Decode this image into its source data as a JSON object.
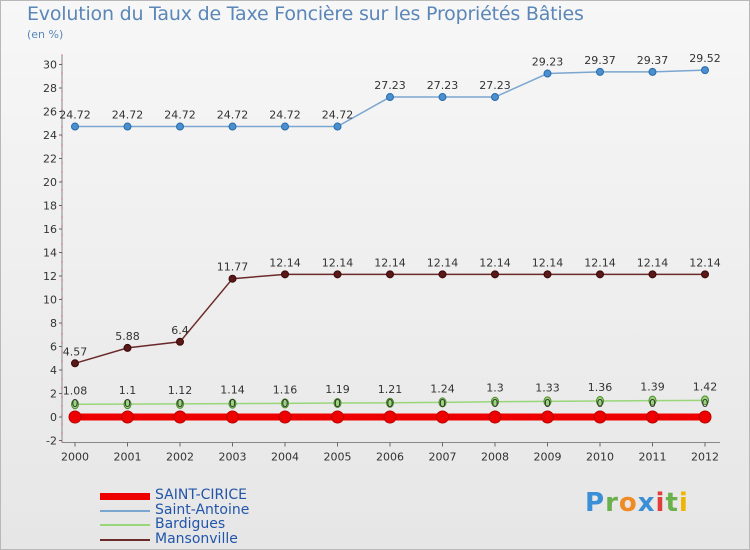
{
  "title": "Evolution du Taux de Taxe Foncière sur les Propriétés Bâties",
  "subtitle": "(en %)",
  "logo": "Proxiti",
  "chart_data": {
    "type": "line",
    "x": [
      "2000",
      "2001",
      "2002",
      "2003",
      "2004",
      "2005",
      "2006",
      "2007",
      "2008",
      "2009",
      "2010",
      "2011",
      "2012"
    ],
    "ylim": [
      -2,
      30
    ],
    "yticks": [
      -2,
      0,
      2,
      4,
      6,
      8,
      10,
      12,
      14,
      16,
      18,
      20,
      22,
      24,
      26,
      28,
      30
    ],
    "series": [
      {
        "name": "SAINT-CIRICE",
        "color": "#ee0000",
        "values": [
          0,
          0,
          0,
          0,
          0,
          0,
          0,
          0,
          0,
          0,
          0,
          0,
          0
        ],
        "labels": [
          "0",
          "0",
          "0",
          "0",
          "0",
          "0",
          "0",
          "0",
          "0",
          "0",
          "0",
          "0",
          "0"
        ]
      },
      {
        "name": "Saint-Antoine",
        "color": "#7ba6cf",
        "values": [
          24.72,
          24.72,
          24.72,
          24.72,
          24.72,
          24.72,
          27.23,
          27.23,
          27.23,
          29.23,
          29.37,
          29.37,
          29.52
        ],
        "labels": [
          "24.72",
          "24.72",
          "24.72",
          "24.72",
          "24.72",
          "24.72",
          "27.23",
          "27.23",
          "27.23",
          "29.23",
          "29.37",
          "29.37",
          "29.52"
        ]
      },
      {
        "name": "Bardigues",
        "color": "#99d67a",
        "values": [
          1.08,
          1.1,
          1.12,
          1.14,
          1.16,
          1.19,
          1.21,
          1.24,
          1.3,
          1.33,
          1.36,
          1.39,
          1.42
        ],
        "labels": [
          "1.08",
          "1.1",
          "1.12",
          "1.14",
          "1.16",
          "1.19",
          "1.21",
          "1.24",
          "1.3",
          "1.33",
          "1.36",
          "1.39",
          "1.42"
        ]
      },
      {
        "name": "Mansonville",
        "color": "#6b2a2a",
        "values": [
          4.57,
          5.88,
          6.4,
          11.77,
          12.14,
          12.14,
          12.14,
          12.14,
          12.14,
          12.14,
          12.14,
          12.14,
          12.14
        ],
        "labels": [
          "4.57",
          "5.88",
          "6.4",
          "11.77",
          "12.14",
          "12.14",
          "12.14",
          "12.14",
          "12.14",
          "12.14",
          "12.14",
          "12.14",
          "12.14"
        ]
      }
    ]
  }
}
